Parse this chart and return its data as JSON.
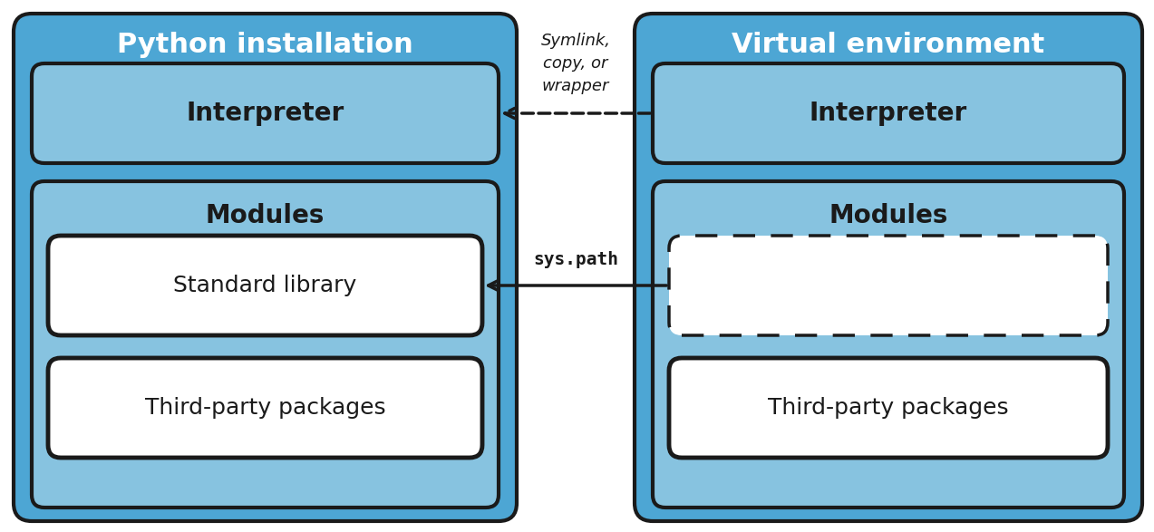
{
  "bg_color": "#ffffff",
  "outer_box_fill": "#4da6d4",
  "outer_box_edge": "#1a1a1a",
  "medium_box_fill": "#87c3e0",
  "medium_box_edge": "#1a1a1a",
  "white_box_fill": "#ffffff",
  "white_box_edge": "#1a1a1a",
  "title_color": "#ffffff",
  "label_color": "#1a1a1a",
  "arrow_color": "#1a1a1a",
  "left_title": "Python installation",
  "right_title": "Virtual environment",
  "interpreter_label": "Interpreter",
  "modules_label": "Modules",
  "stdlib_label": "Standard library",
  "thirdparty_label": "Third-party packages",
  "symlink_label": "Symlink,\ncopy, or\nwrapper",
  "syspath_label": "sys.path",
  "fig_width": 12.73,
  "fig_height": 5.87,
  "dpi": 100
}
